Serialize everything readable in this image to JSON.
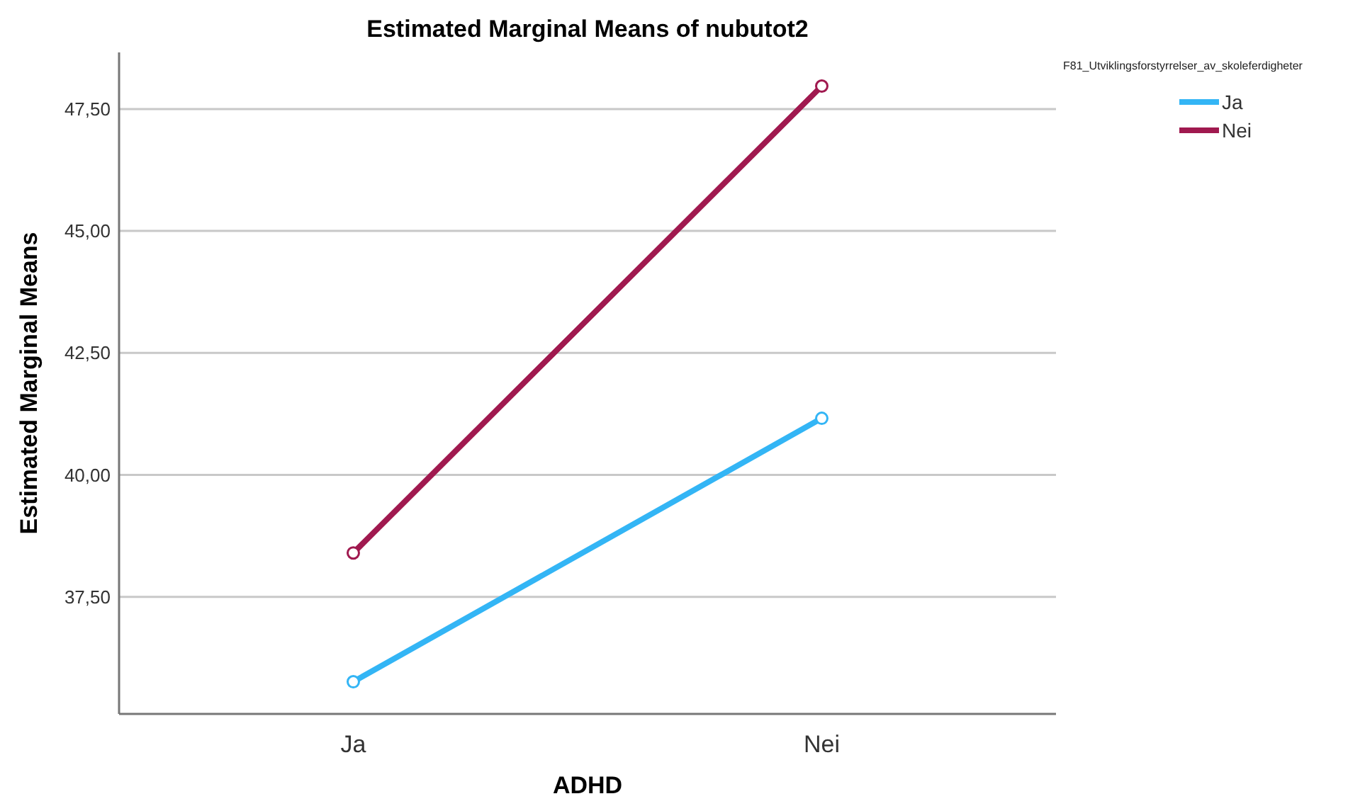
{
  "chart_data": {
    "type": "line",
    "title": "Estimated Marginal Means of nubutot2",
    "xlabel": "ADHD",
    "ylabel": "Estimated Marginal Means",
    "legend_title": "F81_Utviklingsforstyrrelser_av_skoleferdigheter",
    "categories": [
      "Ja",
      "Nei"
    ],
    "series": [
      {
        "name": "Ja",
        "color": "#33b5f5",
        "values": [
          35.76,
          41.16
        ]
      },
      {
        "name": "Nei",
        "color": "#a0194f",
        "values": [
          38.4,
          47.97
        ]
      }
    ],
    "ylim": [
      35.1,
      48.66
    ],
    "yticks": [
      {
        "value": 37.5,
        "label": "37,50"
      },
      {
        "value": 40,
        "label": "40,00"
      },
      {
        "value": 42.5,
        "label": "42,50"
      },
      {
        "value": 45,
        "label": "45,00"
      },
      {
        "value": 47.5,
        "label": "47,50"
      }
    ],
    "grid": "y",
    "legend": "top right",
    "marker": "circle",
    "line_style": "solid"
  }
}
